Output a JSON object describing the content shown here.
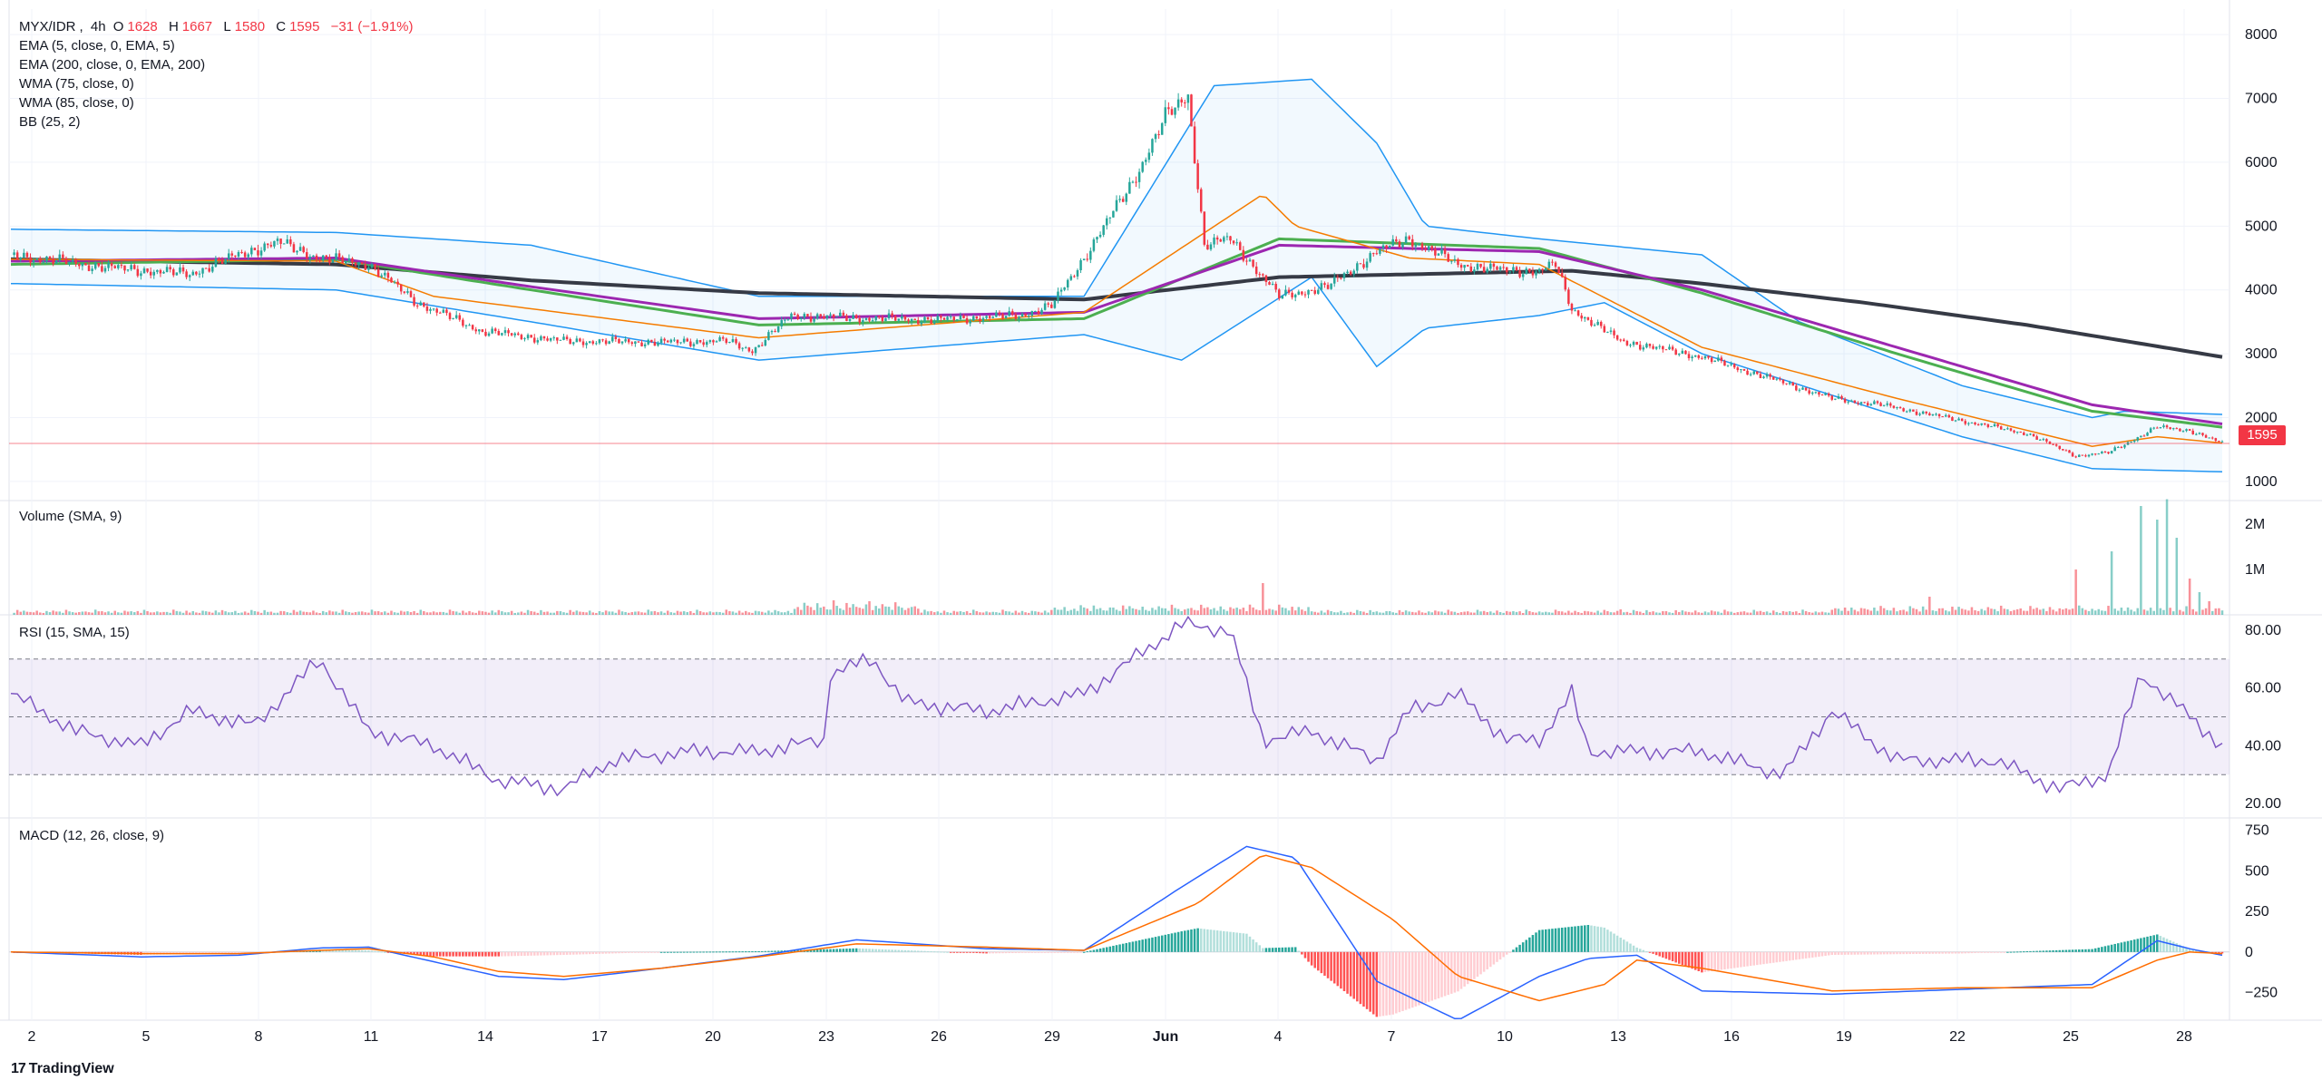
{
  "symbol": {
    "pair": "MYX/IDR",
    "interval": "4h",
    "o_label": "O",
    "open": "1628",
    "h_label": "H",
    "high": "1667",
    "l_label": "L",
    "low": "1580",
    "c_label": "C",
    "close": "1595",
    "change": "−31 (−1.91%)"
  },
  "indicators": [
    "EMA (5, close, 0, EMA, 5)",
    "EMA (200, close, 0, EMA, 200)",
    "WMA (75, close, 0)",
    "WMA (85, close, 0)",
    "BB (25, 2)"
  ],
  "panes": {
    "volume_title": "Volume (SMA, 9)",
    "rsi_title": "RSI (15, SMA, 15)",
    "macd_title": "MACD (12, 26, close, 9)"
  },
  "last_price_label": "1595",
  "brand": "TradingView",
  "colors": {
    "up": "#26a69a",
    "down": "#f23645",
    "ema5": "#f57c00",
    "ema200": "#363a45",
    "wma75": "#9c27b0",
    "wma85": "#4caf50",
    "bb": "#2196f3",
    "rsi": "#7e57c2",
    "macd": "#2962ff",
    "signal": "#ff6d00"
  },
  "chart_data": [
    {
      "type": "candlestick",
      "title": "MYX/IDR, 4h",
      "x_ticks": [
        "2",
        "5",
        "8",
        "11",
        "14",
        "17",
        "20",
        "23",
        "26",
        "29",
        "Jun",
        "4",
        "7",
        "10",
        "13",
        "16",
        "19",
        "22",
        "25",
        "28"
      ],
      "y_ticks": [
        "8000",
        "7000",
        "6000",
        "5000",
        "4000",
        "3000",
        "2000",
        "1000"
      ],
      "ylim": [
        700,
        8400
      ],
      "price_path": [
        [
          0,
          4550
        ],
        [
          30,
          4350
        ],
        [
          55,
          4250
        ],
        [
          70,
          4550
        ],
        [
          82,
          4750
        ],
        [
          95,
          4500
        ],
        [
          110,
          4400
        ],
        [
          125,
          3800
        ],
        [
          145,
          3350
        ],
        [
          170,
          3200
        ],
        [
          200,
          3180
        ],
        [
          220,
          3200
        ],
        [
          228,
          3050
        ],
        [
          240,
          3600
        ],
        [
          260,
          3560
        ],
        [
          285,
          3530
        ],
        [
          310,
          3600
        ],
        [
          320,
          3750
        ],
        [
          330,
          4500
        ],
        [
          345,
          5700
        ],
        [
          355,
          6700
        ],
        [
          362,
          7050
        ],
        [
          367,
          4700
        ],
        [
          375,
          4800
        ],
        [
          390,
          3900
        ],
        [
          405,
          4050
        ],
        [
          420,
          4600
        ],
        [
          430,
          4800
        ],
        [
          445,
          4400
        ],
        [
          460,
          4300
        ],
        [
          470,
          4300
        ],
        [
          475,
          4400
        ],
        [
          480,
          3700
        ],
        [
          495,
          3200
        ],
        [
          520,
          2950
        ],
        [
          545,
          2550
        ],
        [
          560,
          2300
        ],
        [
          575,
          2200
        ],
        [
          590,
          2050
        ],
        [
          610,
          1850
        ],
        [
          620,
          1750
        ],
        [
          635,
          1400
        ],
        [
          645,
          1450
        ],
        [
          660,
          1850
        ],
        [
          670,
          1800
        ],
        [
          680,
          1595
        ]
      ],
      "ema200_path": [
        [
          0,
          4480
        ],
        [
          100,
          4400
        ],
        [
          160,
          4150
        ],
        [
          230,
          3950
        ],
        [
          330,
          3850
        ],
        [
          390,
          4200
        ],
        [
          480,
          4300
        ],
        [
          520,
          4100
        ],
        [
          570,
          3800
        ],
        [
          620,
          3450
        ],
        [
          680,
          2950
        ]
      ],
      "wma75_path": [
        [
          0,
          4450
        ],
        [
          100,
          4500
        ],
        [
          160,
          4050
        ],
        [
          230,
          3550
        ],
        [
          330,
          3650
        ],
        [
          390,
          4700
        ],
        [
          470,
          4600
        ],
        [
          520,
          4000
        ],
        [
          580,
          3100
        ],
        [
          640,
          2200
        ],
        [
          680,
          1900
        ]
      ],
      "wma85_path": [
        [
          0,
          4400
        ],
        [
          100,
          4480
        ],
        [
          160,
          4000
        ],
        [
          230,
          3450
        ],
        [
          330,
          3550
        ],
        [
          390,
          4800
        ],
        [
          470,
          4650
        ],
        [
          520,
          3950
        ],
        [
          580,
          3000
        ],
        [
          640,
          2100
        ],
        [
          680,
          1850
        ]
      ],
      "ema5_path": [
        [
          0,
          4480
        ],
        [
          100,
          4450
        ],
        [
          130,
          3900
        ],
        [
          230,
          3250
        ],
        [
          330,
          3650
        ],
        [
          385,
          5500
        ],
        [
          395,
          5000
        ],
        [
          430,
          4500
        ],
        [
          470,
          4400
        ],
        [
          520,
          3100
        ],
        [
          580,
          2300
        ],
        [
          640,
          1550
        ],
        [
          660,
          1700
        ],
        [
          680,
          1600
        ]
      ],
      "bb_upper_path": [
        [
          0,
          4950
        ],
        [
          100,
          4900
        ],
        [
          160,
          4700
        ],
        [
          230,
          3900
        ],
        [
          330,
          3900
        ],
        [
          370,
          7200
        ],
        [
          400,
          7300
        ],
        [
          420,
          6300
        ],
        [
          435,
          5000
        ],
        [
          470,
          4800
        ],
        [
          520,
          4550
        ],
        [
          550,
          3500
        ],
        [
          600,
          2500
        ],
        [
          640,
          2000
        ],
        [
          650,
          2100
        ],
        [
          680,
          2050
        ]
      ],
      "bb_lower_path": [
        [
          0,
          4100
        ],
        [
          100,
          4000
        ],
        [
          160,
          3500
        ],
        [
          230,
          2900
        ],
        [
          330,
          3300
        ],
        [
          360,
          2900
        ],
        [
          400,
          4200
        ],
        [
          420,
          2800
        ],
        [
          435,
          3400
        ],
        [
          470,
          3600
        ],
        [
          490,
          3800
        ],
        [
          520,
          3000
        ],
        [
          600,
          1700
        ],
        [
          640,
          1200
        ],
        [
          680,
          1150
        ]
      ],
      "last_price": 1595
    },
    {
      "type": "bar",
      "title": "Volume (SMA, 9)",
      "y_ticks": [
        "2M",
        "1M"
      ],
      "ylim": [
        0,
        2500000
      ],
      "spikes": [
        [
          253,
          320000
        ],
        [
          264,
          300000
        ],
        [
          348,
          180000
        ],
        [
          385,
          700000
        ],
        [
          495,
          120000
        ],
        [
          590,
          400000
        ],
        [
          635,
          1000000
        ],
        [
          646,
          1400000
        ],
        [
          655,
          2400000
        ],
        [
          660,
          2100000
        ],
        [
          663,
          2550000
        ],
        [
          666,
          1700000
        ],
        [
          670,
          800000
        ],
        [
          673,
          500000
        ],
        [
          676,
          300000
        ]
      ],
      "base_volume": 80000
    },
    {
      "type": "line",
      "title": "RSI (15, SMA, 15)",
      "y_ticks": [
        "80.00",
        "60.00",
        "40.00",
        "20.00"
      ],
      "ylim": [
        15,
        85
      ],
      "band": [
        30,
        70
      ],
      "mid": 50,
      "rsi_path": [
        [
          0,
          58
        ],
        [
          20,
          45
        ],
        [
          40,
          40
        ],
        [
          55,
          52
        ],
        [
          75,
          47
        ],
        [
          95,
          70
        ],
        [
          110,
          45
        ],
        [
          130,
          40
        ],
        [
          150,
          28
        ],
        [
          170,
          25
        ],
        [
          185,
          35
        ],
        [
          210,
          38
        ],
        [
          230,
          38
        ],
        [
          250,
          42
        ],
        [
          252,
          65
        ],
        [
          265,
          70
        ],
        [
          275,
          55
        ],
        [
          300,
          52
        ],
        [
          330,
          58
        ],
        [
          345,
          70
        ],
        [
          360,
          82
        ],
        [
          375,
          80
        ],
        [
          385,
          42
        ],
        [
          400,
          45
        ],
        [
          420,
          35
        ],
        [
          430,
          52
        ],
        [
          445,
          58
        ],
        [
          460,
          42
        ],
        [
          470,
          42
        ],
        [
          480,
          58
        ],
        [
          485,
          38
        ],
        [
          520,
          38
        ],
        [
          545,
          30
        ],
        [
          560,
          52
        ],
        [
          580,
          35
        ],
        [
          610,
          35
        ],
        [
          630,
          25
        ],
        [
          645,
          30
        ],
        [
          655,
          65
        ],
        [
          670,
          50
        ],
        [
          680,
          40
        ]
      ]
    },
    {
      "type": "line",
      "title": "MACD (12, 26, close, 9)",
      "y_ticks": [
        "750",
        "500",
        "250",
        "0",
        "−250"
      ],
      "ylim": [
        -420,
        820
      ],
      "macd_path": [
        [
          0,
          0
        ],
        [
          40,
          -30
        ],
        [
          70,
          -20
        ],
        [
          95,
          25
        ],
        [
          110,
          30
        ],
        [
          130,
          -60
        ],
        [
          150,
          -150
        ],
        [
          170,
          -170
        ],
        [
          200,
          -100
        ],
        [
          230,
          -25
        ],
        [
          260,
          75
        ],
        [
          300,
          20
        ],
        [
          330,
          10
        ],
        [
          360,
          400
        ],
        [
          380,
          650
        ],
        [
          395,
          580
        ],
        [
          420,
          -180
        ],
        [
          445,
          -420
        ],
        [
          470,
          -150
        ],
        [
          485,
          -40
        ],
        [
          500,
          -20
        ],
        [
          520,
          -240
        ],
        [
          560,
          -260
        ],
        [
          600,
          -230
        ],
        [
          640,
          -200
        ],
        [
          660,
          70
        ],
        [
          670,
          20
        ],
        [
          680,
          -20
        ]
      ],
      "signal_path": [
        [
          0,
          0
        ],
        [
          40,
          -10
        ],
        [
          70,
          -10
        ],
        [
          95,
          10
        ],
        [
          110,
          20
        ],
        [
          130,
          -30
        ],
        [
          150,
          -120
        ],
        [
          170,
          -150
        ],
        [
          200,
          -100
        ],
        [
          230,
          -30
        ],
        [
          260,
          50
        ],
        [
          300,
          30
        ],
        [
          330,
          10
        ],
        [
          365,
          300
        ],
        [
          385,
          600
        ],
        [
          400,
          520
        ],
        [
          425,
          200
        ],
        [
          445,
          -150
        ],
        [
          470,
          -300
        ],
        [
          490,
          -200
        ],
        [
          500,
          -50
        ],
        [
          520,
          -100
        ],
        [
          560,
          -240
        ],
        [
          600,
          -220
        ],
        [
          640,
          -220
        ],
        [
          660,
          -50
        ],
        [
          670,
          0
        ],
        [
          680,
          -10
        ]
      ]
    }
  ]
}
